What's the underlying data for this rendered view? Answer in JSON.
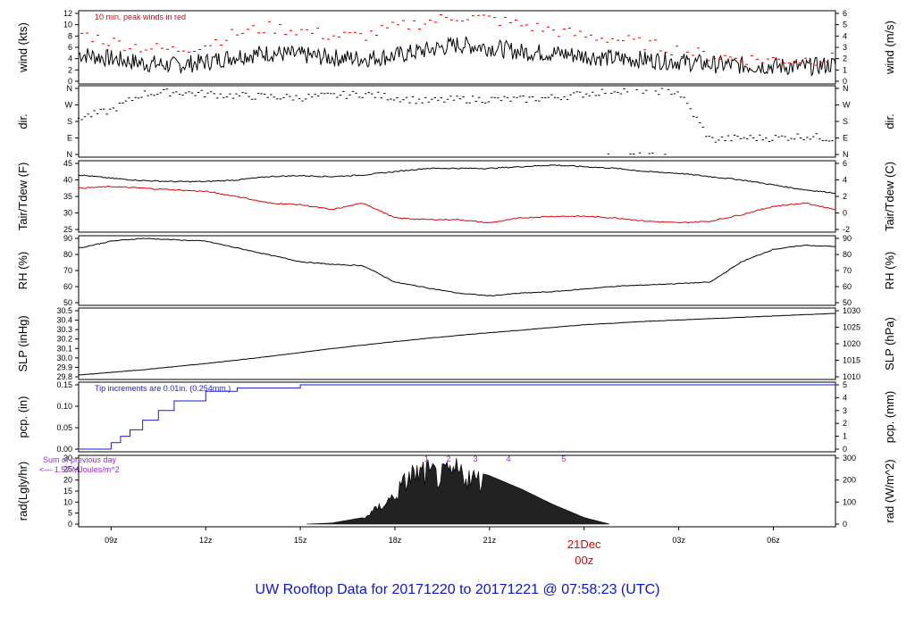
{
  "title": "UW Rooftop Data for 20171220  to  20171221 @ 07:58:23  (UTC)",
  "colors": {
    "title": "#0a14d2",
    "red": "#e00000",
    "blue": "#1a1adf",
    "purple": "#a020f0",
    "date": "#e00000"
  },
  "x_axis": {
    "ticks": [
      {
        "label": "09z",
        "hour": 9
      },
      {
        "label": "12z",
        "hour": 12
      },
      {
        "label": "15z",
        "hour": 15
      },
      {
        "label": "18z",
        "hour": 18
      },
      {
        "label": "21z",
        "hour": 21
      },
      {
        "label": "03z",
        "hour": 27
      },
      {
        "label": "06z",
        "hour": 30
      }
    ],
    "date_marker": {
      "label": "21Dec",
      "sublabel": "00z",
      "hour": 24
    },
    "range_hours": [
      7.97,
      31.97
    ]
  },
  "chart_data": [
    {
      "id": "wind",
      "type": "line",
      "ylabel_left": "wind (kts)",
      "ylabel_right": "wind (m/s)",
      "ylim": [
        0,
        12
      ],
      "yticks_left": [
        "0",
        "2",
        "4",
        "6",
        "8",
        "10",
        "12"
      ],
      "yticks_right": [
        "0",
        "1",
        "2",
        "3",
        "4",
        "5",
        "6"
      ],
      "annotation": "10 min. peak winds in red",
      "series": [
        {
          "color": "#000000",
          "x": [
            8,
            9,
            10,
            11,
            12,
            13,
            14,
            15,
            16,
            17,
            18,
            19,
            20,
            21,
            22,
            23,
            24,
            25,
            26,
            27,
            28,
            29,
            30,
            31,
            32
          ],
          "y": [
            4.8,
            4.0,
            3.2,
            2.8,
            3.4,
            4.5,
            5.0,
            4.6,
            4.2,
            4.0,
            4.5,
            5.5,
            6.5,
            6.0,
            5.2,
            5.0,
            4.5,
            4.0,
            3.8,
            3.5,
            3.0,
            2.8,
            2.7,
            2.5,
            3.0
          ]
        },
        {
          "color": "#e00000",
          "style": "dashes",
          "x": [
            8,
            9,
            10,
            11,
            12,
            13,
            14,
            15,
            16,
            17,
            18,
            19,
            20,
            21,
            22,
            23,
            24,
            25,
            26,
            27,
            28,
            29,
            30,
            31,
            32
          ],
          "y": [
            8.5,
            7.0,
            6.0,
            5.5,
            6.5,
            8.5,
            9.5,
            9.0,
            8.0,
            8.0,
            9.5,
            10.5,
            11.5,
            11.0,
            10.0,
            9.0,
            8.0,
            7.5,
            6.5,
            5.5,
            4.5,
            4.0,
            3.8,
            3.8,
            4.0
          ]
        }
      ]
    },
    {
      "id": "dir",
      "type": "scatter",
      "ylabel_left": "dir.",
      "ylabel_right": "dir.",
      "ylim": [
        0,
        360
      ],
      "yticks_left": [
        "N",
        "E",
        "S",
        "W",
        "N"
      ],
      "yticks_right": [
        "N",
        "E",
        "S",
        "W",
        "N"
      ],
      "series": [
        {
          "color": "#000000",
          "x": [
            8,
            9,
            10,
            11,
            12,
            13,
            14,
            15,
            16,
            17,
            18,
            19,
            20,
            21,
            22,
            23,
            24,
            25,
            26,
            27,
            28,
            29,
            30,
            31,
            32
          ],
          "y": [
            200,
            240,
            330,
            340,
            330,
            320,
            315,
            310,
            320,
            330,
            310,
            290,
            300,
            300,
            300,
            310,
            330,
            350,
            350,
            340,
            80,
            90,
            90,
            100,
            85
          ]
        }
      ]
    },
    {
      "id": "temp",
      "type": "line",
      "ylabel_left": "Tair/Tdew (F)",
      "ylabel_right": "Tair/Tdew (C)",
      "ylim": [
        25,
        45
      ],
      "yticks_left": [
        "25",
        "30",
        "35",
        "40",
        "45"
      ],
      "yticks_right": [
        "-2",
        "0",
        "2",
        "4",
        "6"
      ],
      "series": [
        {
          "name": "Tair",
          "color": "#000000",
          "x": [
            8,
            9,
            10,
            11,
            12,
            13,
            14,
            15,
            16,
            17,
            18,
            19,
            20,
            21,
            22,
            23,
            24,
            25,
            26,
            27,
            28,
            29,
            30,
            31,
            32
          ],
          "y": [
            41.5,
            40.5,
            39.8,
            39.5,
            39.5,
            40.0,
            41.0,
            41.3,
            41.0,
            41.5,
            42.5,
            43.5,
            43.5,
            43.5,
            44.0,
            44.5,
            44.0,
            43.5,
            42.5,
            42.0,
            41.0,
            40.0,
            38.5,
            37.0,
            36.0
          ]
        },
        {
          "name": "Tdew",
          "color": "#e00000",
          "x": [
            8,
            9,
            10,
            11,
            12,
            13,
            14,
            15,
            16,
            17,
            18,
            19,
            20,
            21,
            22,
            23,
            24,
            25,
            26,
            27,
            28,
            29,
            30,
            31,
            32
          ],
          "y": [
            37.5,
            38.0,
            37.5,
            37.0,
            36.5,
            35.0,
            33.0,
            32.5,
            31.0,
            33.0,
            28.5,
            28.0,
            28.0,
            27.0,
            28.5,
            29.0,
            29.0,
            28.5,
            27.5,
            27.0,
            27.5,
            29.5,
            32.0,
            33.0,
            31.0
          ]
        }
      ]
    },
    {
      "id": "rh",
      "type": "line",
      "ylabel_left": "RH (%)",
      "ylabel_right": "RH (%)",
      "ylim": [
        45,
        92
      ],
      "yticks_left": [
        "50",
        "60",
        "70",
        "80",
        "90"
      ],
      "yticks_right": [
        "50",
        "60",
        "70",
        "80",
        "90"
      ],
      "series": [
        {
          "color": "#000000",
          "x": [
            8,
            9,
            10,
            11,
            12,
            13,
            14,
            15,
            16,
            17,
            18,
            19,
            20,
            21,
            22,
            23,
            24,
            25,
            26,
            27,
            28,
            29,
            30,
            31,
            32
          ],
          "y": [
            85,
            90,
            92,
            91,
            90,
            85,
            80,
            75,
            73,
            72,
            60,
            56,
            52,
            50,
            52,
            53,
            55,
            57,
            58,
            59,
            60,
            75,
            84,
            87,
            86
          ]
        }
      ]
    },
    {
      "id": "slp",
      "type": "line",
      "ylabel_left": "SLP (inHg)",
      "ylabel_right": "SLP (hPa)",
      "ylim": [
        29.8,
        30.55
      ],
      "yticks_left": [
        "29.8",
        "29.9",
        "30.0",
        "30.1",
        "30.2",
        "30.3",
        "30.4",
        "30.5"
      ],
      "yticks_right": [
        "1010",
        "1015",
        "1020",
        "1025",
        "1030"
      ],
      "series": [
        {
          "color": "#000000",
          "x": [
            8,
            10,
            12,
            14,
            16,
            18,
            20,
            22,
            24,
            26,
            28,
            30,
            32
          ],
          "y": [
            29.82,
            29.88,
            29.95,
            30.03,
            30.12,
            30.2,
            30.27,
            30.33,
            30.39,
            30.43,
            30.46,
            30.49,
            30.52
          ]
        }
      ]
    },
    {
      "id": "pcp",
      "type": "line",
      "ylabel_left": "pcp. (in)",
      "ylabel_right": "pcp. (mm)",
      "ylim": [
        0,
        0.2
      ],
      "yticks_left": [
        "0.00",
        "0.05",
        "0.10",
        "0.15"
      ],
      "yticks_right": [
        "0",
        "1",
        "2",
        "3",
        "4",
        "5"
      ],
      "annotation": "Tip increments are 0.01in. (0.254mm.)",
      "series": [
        {
          "color": "#1a1adf",
          "x": [
            8,
            8.6,
            9.0,
            9.3,
            9.6,
            10.0,
            10.5,
            11.0,
            12.0,
            13.0,
            14.0,
            15.0,
            32
          ],
          "y": [
            0,
            0,
            0.02,
            0.04,
            0.06,
            0.09,
            0.12,
            0.15,
            0.18,
            0.19,
            0.19,
            0.2,
            0.2
          ]
        }
      ]
    },
    {
      "id": "rad",
      "type": "area",
      "ylabel_left": "rad(Lgly/hr)",
      "ylabel_right": "rad (W/m^2)",
      "ylim": [
        0,
        30
      ],
      "yticks_left": [
        "0",
        "5",
        "10",
        "15",
        "20",
        "25",
        "30"
      ],
      "yticks_right": [
        "0",
        "100",
        "200",
        "300"
      ],
      "annotation_top": "Sum of previous day",
      "annotation_bottom": "<--- 1.57 MJoules/m^2",
      "hour_markers": [
        "1",
        "2",
        "3",
        "4",
        "5"
      ],
      "series": [
        {
          "color": "#000000",
          "x": [
            15.2,
            16,
            17,
            18,
            18.5,
            19,
            19.5,
            20,
            20.5,
            21,
            22,
            23,
            24,
            24.8
          ],
          "y": [
            0,
            0.5,
            3,
            15,
            26,
            27,
            25,
            28,
            24,
            22,
            16,
            9,
            3,
            0
          ]
        }
      ]
    }
  ]
}
